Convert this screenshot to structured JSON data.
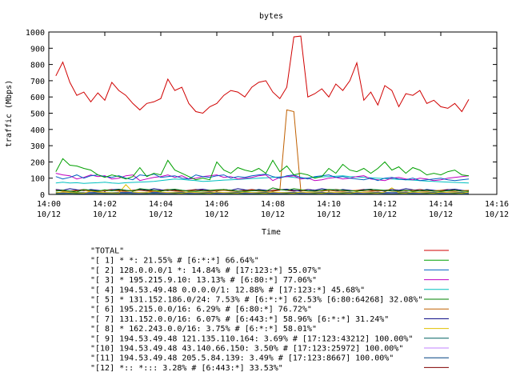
{
  "chart_data": {
    "type": "line",
    "title": "bytes",
    "xlabel": "Time",
    "ylabel": "traffic (Mbps)",
    "ylim": [
      0,
      1000
    ],
    "yticks": [
      0,
      100,
      200,
      300,
      400,
      500,
      600,
      700,
      800,
      900,
      1000
    ],
    "xlim": [
      0,
      16
    ],
    "xticks": [
      {
        "value": 0,
        "time": "14:00",
        "date": "10/12"
      },
      {
        "value": 2,
        "time": "14:02",
        "date": "10/12"
      },
      {
        "value": 4,
        "time": "14:04",
        "date": "10/12"
      },
      {
        "value": 6,
        "time": "14:06",
        "date": "10/12"
      },
      {
        "value": 8,
        "time": "14:08",
        "date": "10/12"
      },
      {
        "value": 10,
        "time": "14:10",
        "date": "10/12"
      },
      {
        "value": 12,
        "time": "14:12",
        "date": "10/12"
      },
      {
        "value": 14,
        "time": "14:14",
        "date": "10/12"
      },
      {
        "value": 16,
        "time": "14:16",
        "date": "10/12"
      }
    ],
    "x": [
      0.25,
      0.5,
      0.75,
      1,
      1.25,
      1.5,
      1.75,
      2,
      2.25,
      2.5,
      2.75,
      3,
      3.25,
      3.5,
      3.75,
      4,
      4.25,
      4.5,
      4.75,
      5,
      5.25,
      5.5,
      5.75,
      6,
      6.25,
      6.5,
      6.75,
      7,
      7.25,
      7.5,
      7.75,
      8,
      8.25,
      8.5,
      8.75,
      9,
      9.25,
      9.5,
      9.75,
      10,
      10.25,
      10.5,
      10.75,
      11,
      11.25,
      11.5,
      11.75,
      12,
      12.25,
      12.5,
      12.75,
      13,
      13.25,
      13.5,
      13.75,
      14,
      14.25,
      14.5,
      14.75,
      15
    ],
    "legend_position": "bottom",
    "series": [
      {
        "name": "\"TOTAL\"",
        "color": "#d00000",
        "values": [
          730,
          815,
          690,
          610,
          630,
          570,
          625,
          580,
          690,
          640,
          610,
          560,
          520,
          560,
          570,
          590,
          710,
          640,
          660,
          560,
          510,
          500,
          540,
          560,
          610,
          640,
          630,
          600,
          660,
          690,
          700,
          630,
          590,
          660,
          970,
          975,
          600,
          620,
          650,
          600,
          680,
          640,
          700,
          810,
          580,
          630,
          550,
          670,
          640,
          540,
          620,
          610,
          640,
          560,
          580,
          540,
          530,
          560,
          510,
          585
        ]
      },
      {
        "name": "\"[ 1] * *: 21.55% # [6:*:*] 66.64%\"",
        "color": "#00a000",
        "values": [
          140,
          220,
          180,
          175,
          160,
          150,
          120,
          105,
          120,
          110,
          95,
          110,
          165,
          110,
          130,
          120,
          210,
          150,
          130,
          110,
          90,
          100,
          90,
          200,
          150,
          130,
          165,
          150,
          140,
          160,
          130,
          210,
          140,
          175,
          120,
          130,
          120,
          100,
          110,
          160,
          130,
          185,
          150,
          140,
          160,
          130,
          160,
          200,
          150,
          170,
          130,
          165,
          150,
          120,
          130,
          120,
          140,
          150,
          120,
          115
        ]
      },
      {
        "name": "\"[ 2] 128.0.0.0/1 *: 14.84% # [17:123:*] 55.07%\"",
        "color": "#0060c0",
        "values": [
          110,
          95,
          105,
          120,
          100,
          115,
          120,
          110,
          105,
          115,
          100,
          90,
          120,
          115,
          125,
          105,
          110,
          115,
          100,
          95,
          120,
          110,
          105,
          115,
          120,
          100,
          110,
          105,
          115,
          120,
          125,
          110,
          100,
          115,
          120,
          105,
          95,
          110,
          115,
          120,
          105,
          110,
          100,
          95,
          90,
          100,
          85,
          100,
          105,
          95,
          90,
          100,
          85,
          90,
          95,
          100,
          90,
          85,
          90,
          95
        ]
      },
      {
        "name": "\"[ 3] * 195.215.9.10: 13.13% # [6:80:*] 77.06%\"",
        "color": "#c000c0",
        "values": [
          130,
          120,
          115,
          95,
          105,
          120,
          110,
          115,
          95,
          100,
          115,
          120,
          85,
          95,
          105,
          110,
          120,
          105,
          115,
          95,
          100,
          110,
          115,
          120,
          105,
          110,
          95,
          100,
          105,
          115,
          120,
          85,
          105,
          110,
          115,
          95,
          100,
          85,
          90,
          100,
          105,
          95,
          100,
          110,
          115,
          95,
          90,
          85,
          100,
          105,
          95,
          90,
          100,
          95,
          85,
          90,
          100,
          105,
          110,
          115
        ]
      },
      {
        "name": "\"[ 4] 194.53.49.48 0.0.0.0/1: 12.88% # [17:123:*] 45.68%\"",
        "color": "#00c0c0",
        "values": [
          70,
          75,
          70,
          72,
          68,
          70,
          72,
          75,
          70,
          68,
          72,
          74,
          76,
          78,
          80,
          85,
          90,
          95,
          92,
          88,
          85,
          80,
          82,
          85,
          88,
          90,
          92,
          95,
          98,
          100,
          102,
          105,
          108,
          110,
          105,
          100,
          102,
          105,
          108,
          110,
          112,
          115,
          110,
          108,
          105,
          102,
          100,
          98,
          95,
          92,
          90,
          88,
          85,
          82,
          80,
          78,
          76,
          74,
          72,
          70
        ]
      },
      {
        "name": "\"[ 5] * 131.152.186.0/24: 7.53% # [6:*:*] 62.53% [6:80:64268] 32.08%\"",
        "color": "#008000",
        "values": [
          20,
          25,
          20,
          15,
          30,
          25,
          20,
          28,
          22,
          30,
          25,
          20,
          35,
          30,
          25,
          20,
          28,
          32,
          25,
          20,
          18,
          22,
          25,
          28,
          30,
          25,
          20,
          18,
          22,
          25,
          20,
          40,
          30,
          25,
          35,
          28,
          22,
          20,
          25,
          30,
          28,
          25,
          22,
          20,
          25,
          30,
          28,
          25,
          22,
          20,
          25,
          18,
          22,
          25,
          20,
          18,
          22,
          25,
          20,
          18
        ]
      },
      {
        "name": "\"[ 6] 195.215.0.0/16: 6.29% # [6:80:*] 76.72%\"",
        "color": "#c06000",
        "values": [
          25,
          20,
          18,
          22,
          25,
          20,
          18,
          22,
          25,
          20,
          18,
          22,
          25,
          20,
          18,
          22,
          25,
          20,
          18,
          22,
          25,
          20,
          18,
          22,
          25,
          20,
          18,
          22,
          25,
          20,
          18,
          20,
          25,
          520,
          510,
          25,
          20,
          18,
          22,
          25,
          20,
          18,
          22,
          25,
          20,
          18,
          22,
          25,
          20,
          18,
          22,
          25,
          20,
          18,
          22,
          25,
          20,
          18,
          22,
          25
        ]
      },
      {
        "name": "\"[ 7] 131.152.0.0/16: 6.07% # [6:443:*] 58.96% [6:*:*] 31.24%\"",
        "color": "#000080",
        "values": [
          30,
          25,
          35,
          28,
          22,
          30,
          25,
          20,
          28,
          32,
          25,
          20,
          30,
          25,
          35,
          28,
          22,
          30,
          25,
          20,
          28,
          32,
          25,
          20,
          30,
          25,
          35,
          28,
          22,
          30,
          25,
          20,
          28,
          32,
          25,
          20,
          30,
          25,
          35,
          28,
          22,
          30,
          25,
          20,
          28,
          32,
          25,
          20,
          30,
          25,
          35,
          28,
          22,
          30,
          25,
          20,
          28,
          32,
          25,
          20
        ]
      },
      {
        "name": "\"[ 8] * 162.243.0.0/16: 3.75% # [6:*:*] 58.01%\"",
        "color": "#e0c000",
        "values": [
          10,
          15,
          12,
          10,
          8,
          20,
          15,
          12,
          10,
          8,
          60,
          15,
          12,
          10,
          20,
          15,
          12,
          10,
          8,
          15,
          12,
          10,
          8,
          15,
          12,
          10,
          8,
          15,
          12,
          10,
          8,
          15,
          12,
          10,
          8,
          15,
          12,
          10,
          8,
          15,
          12,
          10,
          8,
          15,
          12,
          10,
          8,
          15,
          40,
          10,
          8,
          15,
          12,
          10,
          8,
          15,
          12,
          10,
          8,
          15
        ]
      },
      {
        "name": "\"[ 9] 194.53.49.48 121.135.110.164: 3.69% # [17:123:43212] 100.00%\"",
        "color": "#006060",
        "values": [
          5,
          5,
          6,
          5,
          4,
          5,
          6,
          5,
          4,
          5,
          6,
          5,
          4,
          5,
          6,
          5,
          4,
          5,
          6,
          5,
          4,
          5,
          6,
          5,
          4,
          5,
          6,
          5,
          4,
          5,
          6,
          5,
          4,
          5,
          6,
          5,
          4,
          5,
          6,
          5,
          4,
          5,
          6,
          5,
          4,
          5,
          6,
          5,
          4,
          5,
          6,
          5,
          4,
          5,
          6,
          5,
          4,
          5,
          6,
          5
        ]
      },
      {
        "name": "\"[10] 194.53.49.48 43.140.66.150: 3.50% # [17:123:25972] 100.00%\"",
        "color": "#c080ff",
        "values": [
          8,
          8,
          9,
          8,
          7,
          8,
          9,
          8,
          7,
          8,
          9,
          8,
          7,
          8,
          9,
          8,
          7,
          8,
          9,
          8,
          7,
          8,
          9,
          8,
          7,
          8,
          9,
          8,
          7,
          8,
          9,
          8,
          7,
          8,
          9,
          8,
          7,
          8,
          9,
          8,
          7,
          8,
          9,
          8,
          7,
          8,
          9,
          8,
          7,
          8,
          9,
          8,
          7,
          8,
          9,
          8,
          7,
          8,
          9,
          8
        ]
      },
      {
        "name": "\"[11] 194.53.49.48 205.5.84.139: 3.49% # [17:123:8667] 100.00%\"",
        "color": "#004080",
        "values": [
          12,
          12,
          13,
          12,
          11,
          12,
          13,
          12,
          11,
          12,
          13,
          12,
          11,
          12,
          13,
          12,
          11,
          12,
          13,
          12,
          11,
          12,
          13,
          12,
          11,
          12,
          13,
          12,
          11,
          12,
          13,
          12,
          11,
          12,
          13,
          12,
          11,
          12,
          13,
          12,
          11,
          12,
          13,
          12,
          11,
          12,
          13,
          12,
          11,
          12,
          13,
          12,
          11,
          12,
          13,
          12,
          11,
          12,
          13,
          12
        ]
      },
      {
        "name": "\"[12] *:: *::: 3.28% # [6:443:*] 33.53%\"",
        "color": "#800000",
        "values": [
          30,
          25,
          20,
          25,
          30,
          25,
          20,
          25,
          30,
          25,
          20,
          25,
          30,
          25,
          20,
          25,
          30,
          25,
          20,
          25,
          30,
          25,
          20,
          25,
          30,
          25,
          20,
          25,
          30,
          25,
          20,
          25,
          30,
          25,
          20,
          25,
          30,
          25,
          20,
          25,
          30,
          25,
          20,
          25,
          30,
          25,
          20,
          25,
          30,
          25,
          20,
          25,
          30,
          25,
          20,
          25,
          30,
          25,
          20,
          25
        ]
      }
    ]
  }
}
